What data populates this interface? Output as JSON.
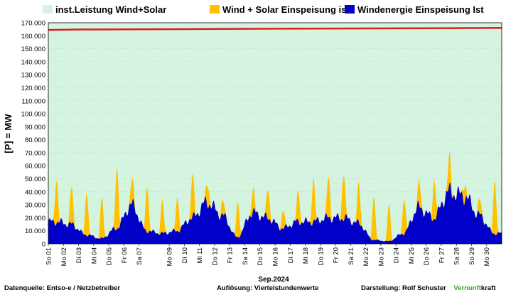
{
  "chart_data": {
    "type": "area",
    "ylabel": "[P] =   MW",
    "xlabel": "Sep.2024",
    "ylim": [
      0,
      170000
    ],
    "yticks": [
      0,
      10000,
      20000,
      30000,
      40000,
      50000,
      60000,
      70000,
      80000,
      90000,
      100000,
      110000,
      120000,
      130000,
      140000,
      150000,
      160000,
      170000
    ],
    "ytick_labels": [
      "0",
      "10.000",
      "20.000",
      "30.000",
      "40.000",
      "50.000",
      "60.000",
      "70.000",
      "80.000",
      "90.000",
      "100.000",
      "110.000",
      "120.000",
      "130.000",
      "140.000",
      "150.000",
      "160.000",
      "170.000"
    ],
    "x_labels": [
      "So 01",
      "Mo 02",
      "Di 03",
      "Mi 04",
      "Do 05",
      "Fr 06",
      "Sa 07",
      "Mo 09",
      "Di 10",
      "Mi 11",
      "Do 12",
      "Fr 13",
      "Sa 14",
      "Do 15",
      "Mo 16",
      "Di 17",
      "Mi 18",
      "Do 19",
      "Fr 20",
      "Sa 21",
      "Mo 22",
      "Mo 23",
      "Di 24",
      "Mi 25",
      "Do 26",
      "Fr 27",
      "Sa 28",
      "So 29",
      "Mo 30"
    ],
    "x_label_days": [
      1,
      2,
      3,
      4,
      5,
      6,
      7,
      9,
      10,
      11,
      12,
      13,
      14,
      15,
      16,
      17,
      18,
      19,
      20,
      21,
      22,
      23,
      24,
      25,
      26,
      27,
      28,
      29,
      30
    ],
    "x_range_days": [
      1,
      31
    ],
    "grid": true,
    "legend_placement": "top",
    "series": [
      {
        "name": "inst.Leistung Wind+Solar",
        "color": "#d4f4e0",
        "line_color": "#e41a1c",
        "x_days": [
          1,
          3,
          8,
          12,
          18,
          26,
          31
        ],
        "values": [
          164500,
          164800,
          165000,
          165200,
          165500,
          165800,
          166000
        ]
      },
      {
        "name": "Wind + Solar Einspeisung ist",
        "color": "#ffc000",
        "daily_peak_mw": [
          50000,
          43000,
          40000,
          35000,
          59000,
          48000,
          45000,
          33000,
          36000,
          52000,
          48000,
          33000,
          32000,
          41000,
          43000,
          26000,
          40000,
          50000,
          51000,
          55000,
          46000,
          36000,
          30000,
          35000,
          46000,
          50000,
          64000,
          49000,
          33000,
          49000
        ]
      },
      {
        "name": "Windenergie Einspeisung Ist",
        "color": "#0000c8",
        "daily_wind_mw": [
          17000,
          15000,
          7000,
          4000,
          12000,
          30000,
          10000,
          8000,
          10000,
          20000,
          32000,
          22000,
          5000,
          24000,
          20000,
          12000,
          17000,
          17000,
          20000,
          20000,
          16000,
          3000,
          2000,
          8000,
          28000,
          20000,
          40000,
          37000,
          22000,
          8000
        ]
      }
    ]
  },
  "footer": {
    "source": "Datenquelle:  Entso-e  / Netzbetreiber",
    "resolution": "Auflösung: Viertelstundenwerte",
    "author": "Darstellung:  Rolf Schuster",
    "brand_green": "Vernunft",
    "brand_black": "kraft"
  }
}
